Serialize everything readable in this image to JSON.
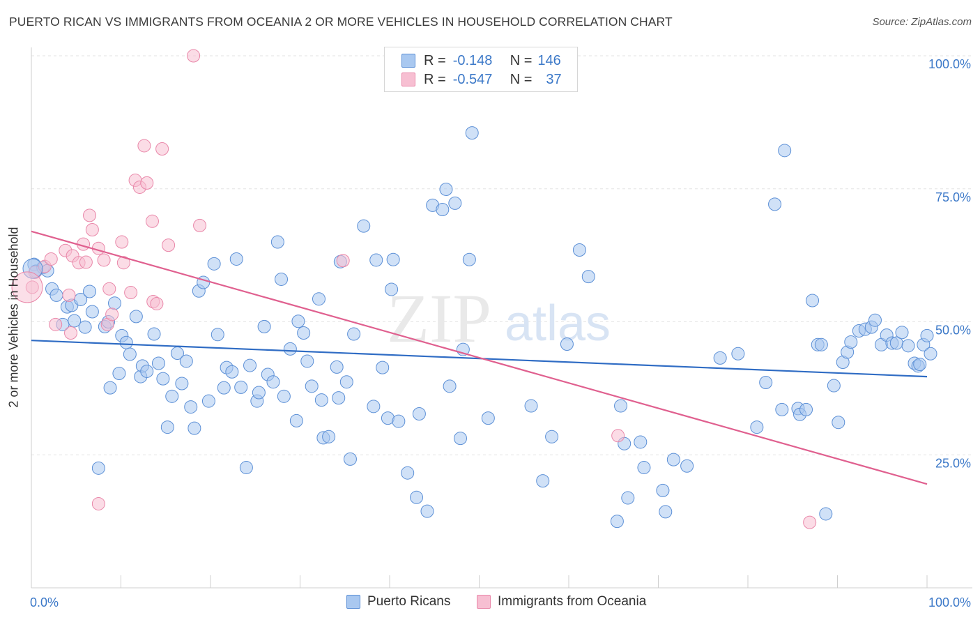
{
  "title": "PUERTO RICAN VS IMMIGRANTS FROM OCEANIA 2 OR MORE VEHICLES IN HOUSEHOLD CORRELATION CHART",
  "source": "Source: ZipAtlas.com",
  "watermark": {
    "zip": "ZIP",
    "atlas": "atlas"
  },
  "legend": {
    "r_label": "R =",
    "n_label": "N =",
    "rows": [
      {
        "r": "-0.148",
        "n": "146",
        "color": "#a9c8f0",
        "edge": "#5b8fd6"
      },
      {
        "r": "-0.547",
        "n": "37",
        "color": "#f7bfd2",
        "edge": "#e987a9"
      }
    ]
  },
  "chart_data": {
    "type": "scatter",
    "xlabel": "",
    "ylabel": "2 or more Vehicles in Household",
    "xlim": [
      0,
      100
    ],
    "ylim": [
      0,
      100
    ],
    "x_tick_labels": [
      "0.0%",
      "100.0%"
    ],
    "y_tick_labels": [
      "25.0%",
      "50.0%",
      "75.0%",
      "100.0%"
    ],
    "y_ticks": [
      25,
      50,
      75,
      100
    ],
    "grid": true,
    "legend_position": "top-center",
    "series": [
      {
        "name": "Puerto Ricans",
        "color": "#a9c8f0",
        "edge": "#5b8fd6",
        "line_color": "#2f6cc4",
        "trend": {
          "x": [
            0,
            100
          ],
          "y": [
            46.5,
            39.7
          ]
        },
        "points": [
          [
            0.3,
            60.8
          ],
          [
            0.5,
            59.5
          ],
          [
            1.3,
            60.2
          ],
          [
            1.8,
            59.6
          ],
          [
            2.3,
            56.2
          ],
          [
            2.8,
            55.0
          ],
          [
            3.5,
            49.5
          ],
          [
            4.0,
            52.8
          ],
          [
            4.5,
            53.1
          ],
          [
            4.8,
            50.2
          ],
          [
            5.5,
            54.2
          ],
          [
            6.0,
            49.0
          ],
          [
            6.5,
            55.7
          ],
          [
            6.8,
            51.9
          ],
          [
            7.5,
            22.5
          ],
          [
            8.2,
            49.1
          ],
          [
            8.6,
            50.0
          ],
          [
            8.8,
            37.6
          ],
          [
            9.3,
            53.5
          ],
          [
            9.8,
            40.3
          ],
          [
            10.1,
            47.4
          ],
          [
            10.6,
            46.1
          ],
          [
            11.0,
            43.9
          ],
          [
            11.7,
            51.0
          ],
          [
            12.2,
            39.7
          ],
          [
            12.4,
            41.7
          ],
          [
            12.9,
            40.7
          ],
          [
            13.7,
            47.7
          ],
          [
            14.2,
            42.2
          ],
          [
            14.7,
            39.3
          ],
          [
            15.2,
            30.2
          ],
          [
            15.7,
            36.0
          ],
          [
            16.3,
            44.1
          ],
          [
            16.8,
            38.4
          ],
          [
            17.3,
            42.6
          ],
          [
            17.8,
            34.0
          ],
          [
            18.2,
            30.0
          ],
          [
            18.7,
            55.8
          ],
          [
            19.2,
            57.4
          ],
          [
            19.8,
            35.1
          ],
          [
            20.4,
            60.9
          ],
          [
            20.8,
            47.6
          ],
          [
            21.5,
            37.6
          ],
          [
            21.8,
            41.4
          ],
          [
            22.4,
            40.6
          ],
          [
            22.9,
            61.8
          ],
          [
            23.4,
            37.7
          ],
          [
            24.0,
            22.6
          ],
          [
            24.4,
            41.8
          ],
          [
            25.2,
            35.1
          ],
          [
            25.4,
            36.7
          ],
          [
            26.0,
            49.1
          ],
          [
            26.4,
            40.1
          ],
          [
            27.0,
            38.7
          ],
          [
            27.5,
            65.0
          ],
          [
            27.9,
            58.0
          ],
          [
            28.2,
            36.0
          ],
          [
            28.9,
            44.9
          ],
          [
            29.8,
            50.1
          ],
          [
            29.6,
            31.4
          ],
          [
            30.4,
            47.9
          ],
          [
            30.8,
            42.6
          ],
          [
            31.3,
            37.9
          ],
          [
            32.1,
            54.3
          ],
          [
            32.4,
            35.3
          ],
          [
            32.6,
            28.2
          ],
          [
            33.2,
            28.4
          ],
          [
            34.1,
            41.5
          ],
          [
            34.5,
            61.3
          ],
          [
            34.3,
            35.7
          ],
          [
            35.2,
            38.7
          ],
          [
            35.6,
            24.2
          ],
          [
            36.0,
            47.7
          ],
          [
            37.1,
            68.0
          ],
          [
            38.2,
            34.1
          ],
          [
            38.5,
            61.6
          ],
          [
            39.2,
            41.4
          ],
          [
            39.8,
            31.9
          ],
          [
            40.2,
            56.1
          ],
          [
            40.4,
            61.7
          ],
          [
            41.0,
            31.3
          ],
          [
            42.0,
            21.6
          ],
          [
            43.0,
            17.0
          ],
          [
            43.3,
            32.7
          ],
          [
            44.2,
            14.4
          ],
          [
            44.8,
            71.9
          ],
          [
            45.9,
            71.1
          ],
          [
            46.3,
            74.9
          ],
          [
            46.7,
            37.9
          ],
          [
            47.3,
            72.3
          ],
          [
            47.9,
            28.1
          ],
          [
            48.2,
            44.8
          ],
          [
            48.9,
            61.7
          ],
          [
            49.2,
            85.5
          ],
          [
            51.0,
            31.9
          ],
          [
            55.8,
            34.2
          ],
          [
            57.1,
            20.1
          ],
          [
            58.1,
            28.4
          ],
          [
            59.8,
            45.8
          ],
          [
            61.2,
            63.5
          ],
          [
            62.2,
            58.5
          ],
          [
            65.4,
            12.5
          ],
          [
            65.8,
            34.2
          ],
          [
            66.2,
            27.1
          ],
          [
            66.6,
            16.9
          ],
          [
            68.0,
            27.4
          ],
          [
            68.4,
            22.6
          ],
          [
            70.5,
            18.3
          ],
          [
            70.8,
            14.3
          ],
          [
            71.7,
            24.1
          ],
          [
            73.2,
            22.9
          ],
          [
            76.9,
            43.2
          ],
          [
            78.9,
            44.0
          ],
          [
            81.0,
            30.2
          ],
          [
            82.0,
            38.6
          ],
          [
            83.0,
            72.1
          ],
          [
            84.1,
            82.2
          ],
          [
            83.8,
            33.5
          ],
          [
            85.6,
            33.7
          ],
          [
            85.8,
            32.6
          ],
          [
            86.5,
            33.5
          ],
          [
            87.2,
            54.0
          ],
          [
            87.8,
            45.7
          ],
          [
            88.2,
            45.7
          ],
          [
            88.7,
            13.9
          ],
          [
            89.6,
            38.0
          ],
          [
            90.1,
            31.1
          ],
          [
            90.6,
            42.4
          ],
          [
            91.1,
            44.3
          ],
          [
            91.5,
            46.2
          ],
          [
            92.4,
            48.3
          ],
          [
            93.1,
            48.6
          ],
          [
            93.8,
            49.0
          ],
          [
            94.2,
            50.3
          ],
          [
            94.9,
            45.7
          ],
          [
            95.5,
            47.5
          ],
          [
            96.1,
            46.0
          ],
          [
            96.6,
            46.0
          ],
          [
            97.2,
            48.0
          ],
          [
            97.9,
            45.5
          ],
          [
            98.6,
            42.2
          ],
          [
            99.0,
            41.7
          ],
          [
            99.6,
            45.7
          ],
          [
            100.0,
            47.4
          ],
          [
            100.5,
            44.0
          ],
          [
            99.2,
            42.0
          ]
        ]
      },
      {
        "name": "Immigrants from Oceania",
        "color": "#f7bfd2",
        "edge": "#e987a9",
        "line_color": "#e0608f",
        "trend": {
          "x": [
            0,
            100
          ],
          "y": [
            67.0,
            19.5
          ]
        },
        "points": [
          [
            0.1,
            56.5
          ],
          [
            0.4,
            59.3
          ],
          [
            1.5,
            60.4
          ],
          [
            2.7,
            49.5
          ],
          [
            3.8,
            63.4
          ],
          [
            4.2,
            55.0
          ],
          [
            4.4,
            47.9
          ],
          [
            4.6,
            62.4
          ],
          [
            5.3,
            61.1
          ],
          [
            5.8,
            64.6
          ],
          [
            6.1,
            61.2
          ],
          [
            6.5,
            70.0
          ],
          [
            6.8,
            67.3
          ],
          [
            7.5,
            63.8
          ],
          [
            8.1,
            61.6
          ],
          [
            8.5,
            49.5
          ],
          [
            8.7,
            56.2
          ],
          [
            9.0,
            51.4
          ],
          [
            10.1,
            65.0
          ],
          [
            10.3,
            61.1
          ],
          [
            11.1,
            55.5
          ],
          [
            11.6,
            76.6
          ],
          [
            12.1,
            75.3
          ],
          [
            12.6,
            83.1
          ],
          [
            12.9,
            76.1
          ],
          [
            13.5,
            68.9
          ],
          [
            13.6,
            53.8
          ],
          [
            14.0,
            53.4
          ],
          [
            14.6,
            82.5
          ],
          [
            18.1,
            100.0
          ],
          [
            18.8,
            68.1
          ],
          [
            34.8,
            61.5
          ],
          [
            65.5,
            28.6
          ],
          [
            86.9,
            12.3
          ],
          [
            7.5,
            15.8
          ],
          [
            15.3,
            64.4
          ],
          [
            2.2,
            61.8
          ]
        ]
      }
    ]
  },
  "bottom_legend": [
    "Puerto Ricans",
    "Immigrants from Oceania"
  ]
}
